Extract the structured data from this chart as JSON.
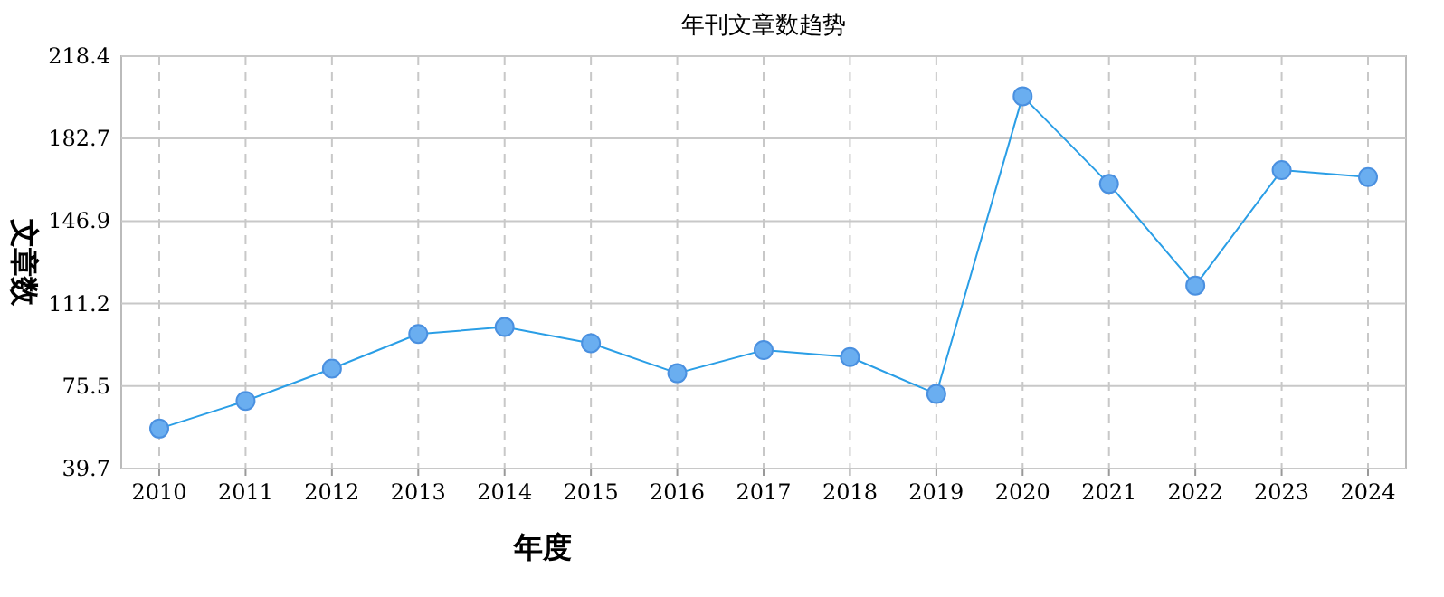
{
  "chart_data": {
    "type": "line",
    "title": "年刊文章数趋势",
    "xlabel": "年度",
    "ylabel": "文章数",
    "categories": [
      "2010",
      "2011",
      "2012",
      "2013",
      "2014",
      "2015",
      "2016",
      "2017",
      "2018",
      "2019",
      "2020",
      "2021",
      "2022",
      "2023",
      "2024"
    ],
    "series": [
      {
        "color": "#2a9ee6",
        "values": [
          57,
          69,
          83,
          98,
          101,
          94,
          81,
          91,
          88,
          72,
          201,
          163,
          119,
          169,
          166
        ]
      }
    ],
    "ylim": [
      39.7,
      218.4
    ],
    "yticks": [
      39.7,
      75.5,
      111.2,
      146.9,
      182.7,
      218.4
    ],
    "grid": true,
    "marker": "circle",
    "line_style": "solid"
  }
}
